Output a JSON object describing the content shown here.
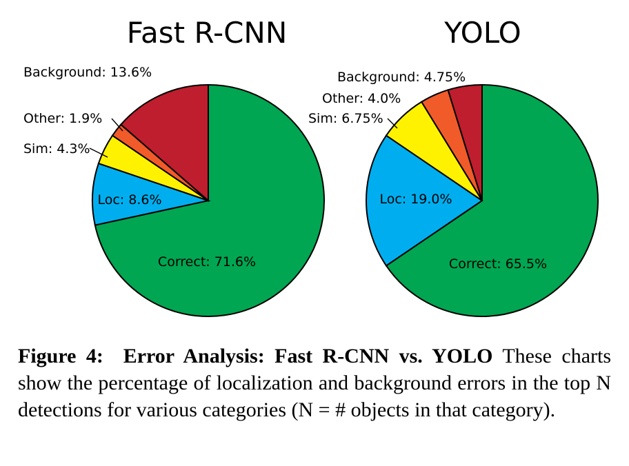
{
  "colors": {
    "Correct": "#00a651",
    "Loc": "#00aeef",
    "Sim": "#fff200",
    "Other": "#f15a29",
    "Background": "#be1e2d"
  },
  "chart_data": [
    {
      "type": "pie",
      "title": "Fast R-CNN",
      "slices": [
        {
          "name": "Correct",
          "value": 71.6,
          "label": "Correct: 71.6%"
        },
        {
          "name": "Loc",
          "value": 8.6,
          "label": "Loc: 8.6%"
        },
        {
          "name": "Sim",
          "value": 4.3,
          "label": "Sim: 4.3%"
        },
        {
          "name": "Other",
          "value": 1.9,
          "label": "Other: 1.9%"
        },
        {
          "name": "Background",
          "value": 13.6,
          "label": "Background: 13.6%"
        }
      ]
    },
    {
      "type": "pie",
      "title": "YOLO",
      "slices": [
        {
          "name": "Correct",
          "value": 65.5,
          "label": "Correct: 65.5%"
        },
        {
          "name": "Loc",
          "value": 19.0,
          "label": "Loc: 19.0%"
        },
        {
          "name": "Sim",
          "value": 6.75,
          "label": "Sim: 6.75%"
        },
        {
          "name": "Other",
          "value": 4.0,
          "label": "Other: 4.0%"
        },
        {
          "name": "Background",
          "value": 4.75,
          "label": "Background: 4.75%"
        }
      ]
    }
  ],
  "caption": {
    "label": "Figure 4:",
    "title": "Error Analysis: Fast R-CNN vs.  YOLO",
    "text": "These charts show the percentage of localization and background errors in the top N detections for various categories (N = # objects in that category)."
  }
}
